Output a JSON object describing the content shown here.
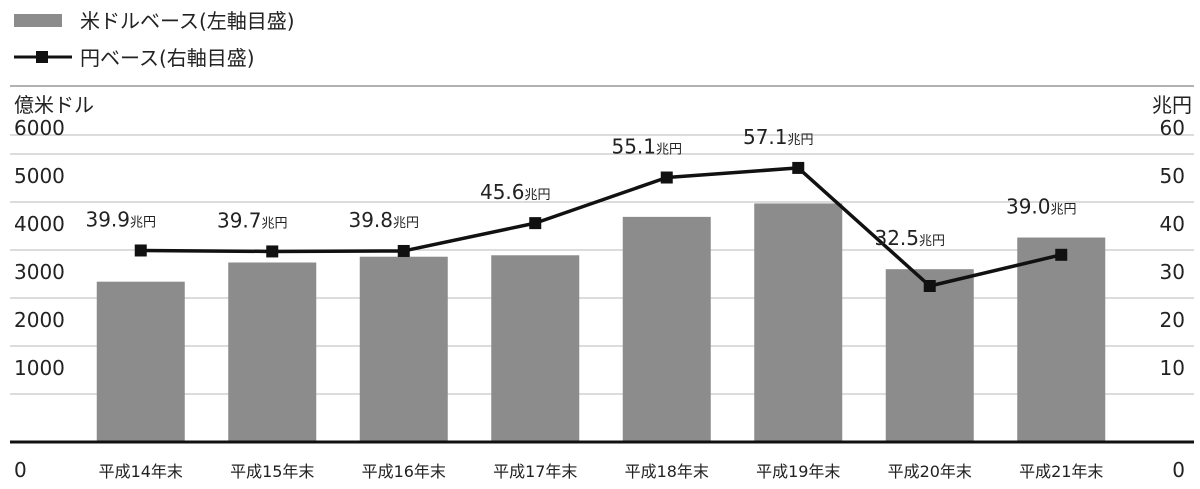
{
  "legend": {
    "bar_label": "米ドルベース(左軸目盛)",
    "line_label": "円ベース(右軸目盛)"
  },
  "axes": {
    "left_unit": "億米ドル",
    "right_unit": "兆円",
    "left_ticks": [
      "0",
      "1000",
      "2000",
      "3000",
      "4000",
      "5000",
      "6000"
    ],
    "right_ticks": [
      "0",
      "10",
      "20",
      "30",
      "40",
      "50",
      "60"
    ]
  },
  "chart_data": {
    "type": "bar",
    "categories": [
      "平成14年末",
      "平成15年末",
      "平成16年末",
      "平成17年末",
      "平成18年末",
      "平成19年末",
      "平成20年末",
      "平成21年末"
    ],
    "series": [
      {
        "name": "米ドルベース(左軸目盛)",
        "type": "bar",
        "axis": "left",
        "color": "#8c8c8c",
        "values": [
          3340,
          3740,
          3860,
          3890,
          4690,
          4970,
          3600,
          4260
        ]
      },
      {
        "name": "円ベース(右軸目盛)",
        "type": "line",
        "axis": "right",
        "color": "#111111",
        "marker": "square",
        "values": [
          39.9,
          39.7,
          39.8,
          45.6,
          55.1,
          57.1,
          32.5,
          39.0
        ],
        "labels": [
          "39.9",
          "39.7",
          "39.8",
          "45.6",
          "55.1",
          "57.1",
          "32.5",
          "39.0"
        ],
        "label_unit": "兆円"
      }
    ],
    "ylim_left": [
      0,
      6000
    ],
    "ylim_right": [
      0,
      60
    ],
    "grid": true,
    "legend_position": "top-left"
  }
}
